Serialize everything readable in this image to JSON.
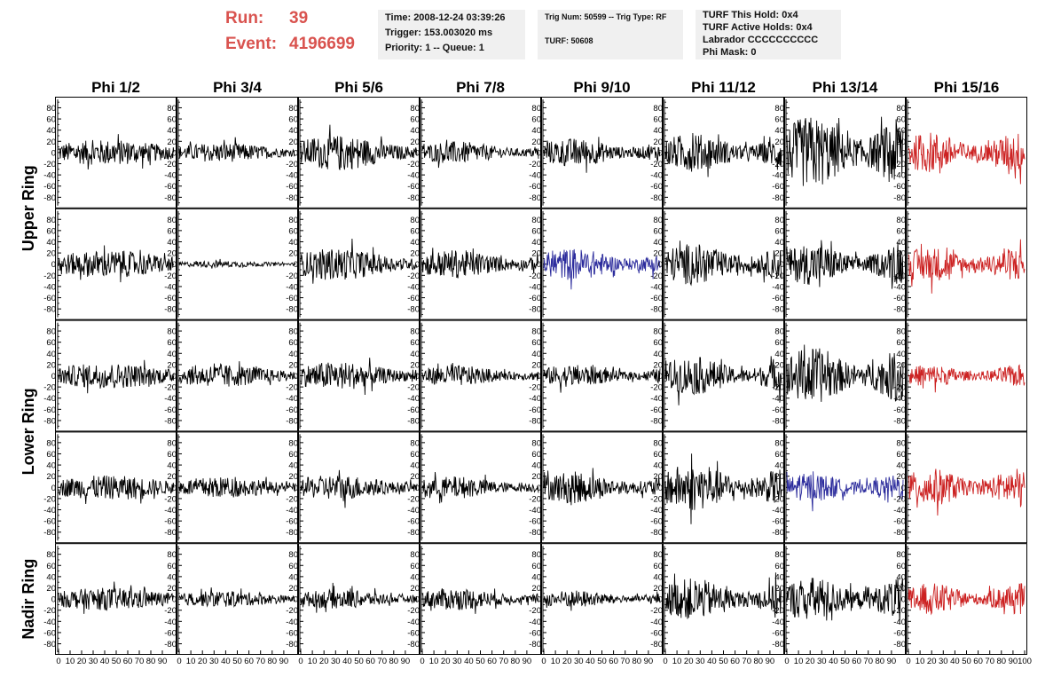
{
  "header": {
    "run_label": "Run:",
    "run_value": "39",
    "event_label": "Event:",
    "event_value": "4196699",
    "time": "Time: 2008-12-24 03:39:26",
    "trigger": "Trigger: 153.003020 ms",
    "priority": "Priority: 1 -- Queue: 1",
    "trig_num": "Trig Num: 50599 -- Trig Type: RF",
    "turf": "TURF: 50608",
    "turf_this_hold": "TURF This Hold: 0x4",
    "turf_active_holds": "TURF Active Holds: 0x4",
    "labrador": "Labrador CCCCCCCCCC",
    "phi_mask": "Phi Mask: 0",
    "run_color": "#d9534f"
  },
  "columns": [
    "Phi 1/2",
    "Phi 3/4",
    "Phi 5/6",
    "Phi 7/8",
    "Phi 9/10",
    "Phi 11/12",
    "Phi 13/14",
    "Phi 15/16"
  ],
  "rows": [
    "Upper Ring",
    "Lower Ring",
    "Nadir Ring"
  ],
  "chart_data": {
    "type": "line",
    "x_ticks": [
      0,
      10,
      20,
      30,
      40,
      50,
      60,
      70,
      80,
      90,
      100
    ],
    "y_ticks": [
      80,
      60,
      40,
      20,
      0,
      -20,
      -40,
      -60,
      -80
    ],
    "xlim": [
      0,
      100
    ],
    "ylim": [
      -95,
      95
    ],
    "colors": {
      "default": "#000000",
      "blue": "#2b2b9c",
      "red": "#cc2222"
    },
    "note": "5 rows of trace panels (Upper Ring spans rows 1-2, Lower Ring rows 3-4, Nadir Ring row 5); amplitudes estimated from the plot",
    "panels": [
      [
        {
          "amp": 16,
          "color": "default"
        },
        {
          "amp": 12,
          "color": "default"
        },
        {
          "amp": 22,
          "color": "default"
        },
        {
          "amp": 14,
          "color": "default"
        },
        {
          "amp": 18,
          "color": "default"
        },
        {
          "amp": 24,
          "color": "default"
        },
        {
          "amp": 46,
          "color": "default"
        },
        {
          "amp": 26,
          "color": "red"
        }
      ],
      [
        {
          "amp": 17,
          "color": "default"
        },
        {
          "amp": 4,
          "color": "default"
        },
        {
          "amp": 20,
          "color": "default"
        },
        {
          "amp": 18,
          "color": "default"
        },
        {
          "amp": 20,
          "color": "blue"
        },
        {
          "amp": 26,
          "color": "default"
        },
        {
          "amp": 26,
          "color": "default"
        },
        {
          "amp": 22,
          "color": "red"
        }
      ],
      [
        {
          "amp": 16,
          "color": "default"
        },
        {
          "amp": 14,
          "color": "default"
        },
        {
          "amp": 18,
          "color": "default"
        },
        {
          "amp": 13,
          "color": "default"
        },
        {
          "amp": 14,
          "color": "default"
        },
        {
          "amp": 24,
          "color": "default"
        },
        {
          "amp": 36,
          "color": "default"
        },
        {
          "amp": 14,
          "color": "red"
        }
      ],
      [
        {
          "amp": 15,
          "color": "default"
        },
        {
          "amp": 13,
          "color": "default"
        },
        {
          "amp": 16,
          "color": "default"
        },
        {
          "amp": 14,
          "color": "default"
        },
        {
          "amp": 20,
          "color": "default"
        },
        {
          "amp": 30,
          "color": "default"
        },
        {
          "amp": 18,
          "color": "blue"
        },
        {
          "amp": 24,
          "color": "red"
        }
      ],
      [
        {
          "amp": 14,
          "color": "default"
        },
        {
          "amp": 10,
          "color": "default"
        },
        {
          "amp": 12,
          "color": "default"
        },
        {
          "amp": 14,
          "color": "default"
        },
        {
          "amp": 11,
          "color": "default"
        },
        {
          "amp": 26,
          "color": "default"
        },
        {
          "amp": 28,
          "color": "default"
        },
        {
          "amp": 20,
          "color": "red"
        }
      ]
    ]
  }
}
